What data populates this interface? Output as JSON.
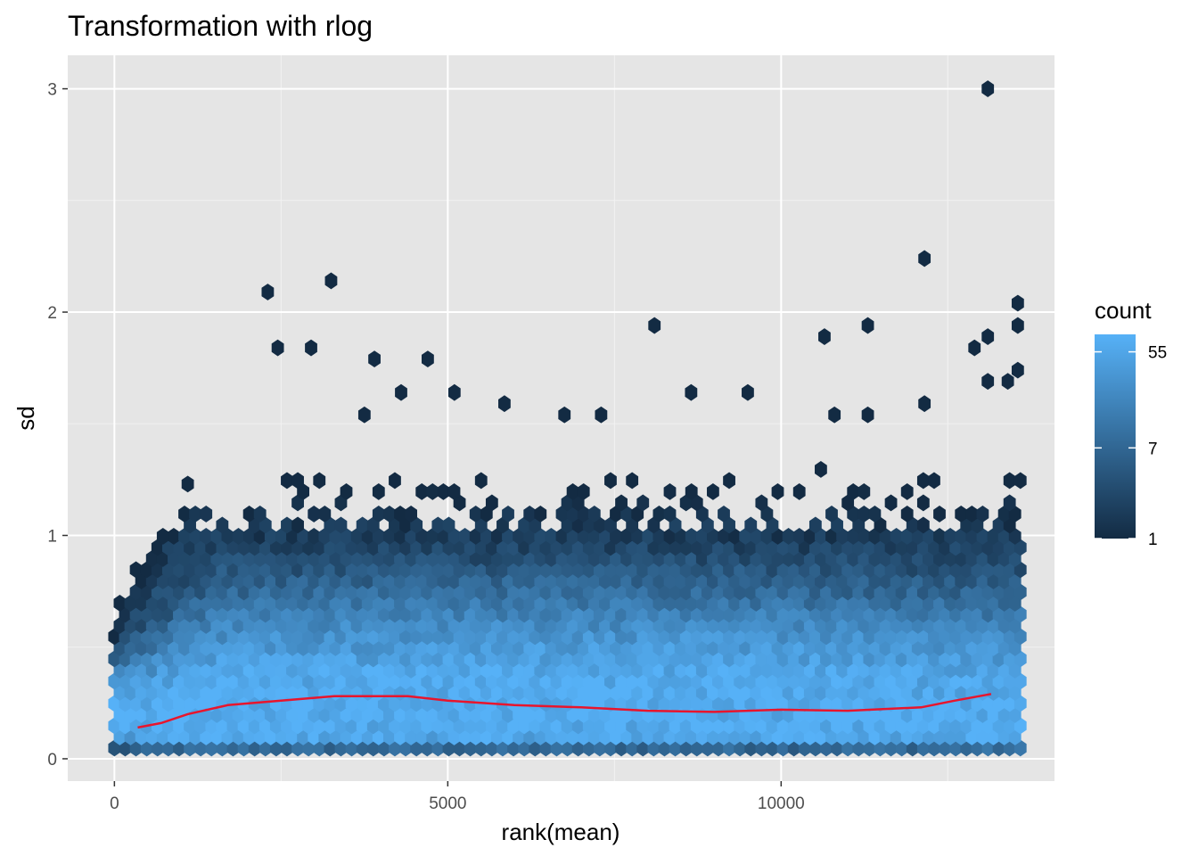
{
  "chart_data": {
    "type": "hexbin",
    "title": "Transformation with rlog",
    "xlabel": "rank(mean)",
    "ylabel": "sd",
    "xlim": [
      -700,
      14100
    ],
    "ylim": [
      -0.1,
      3.15
    ],
    "x_ticks": [
      0,
      5000,
      10000
    ],
    "x_tick_labels": [
      "0",
      "5000",
      "10000"
    ],
    "y_ticks": [
      0,
      1,
      2,
      3
    ],
    "y_tick_labels": [
      "0",
      "1",
      "2",
      "3"
    ],
    "grid": true,
    "panel_background": "#e5e5e5",
    "legend": {
      "title": "count",
      "position": "right",
      "scale": "log",
      "range": [
        1,
        80
      ],
      "breaks": [
        1,
        7,
        55
      ],
      "break_labels": [
        "1",
        "7",
        "55"
      ],
      "low_color": "#132b43",
      "high_color": "#56b1f7"
    },
    "outlier_hexes": [
      {
        "x": 13100,
        "y": 3.0
      },
      {
        "x": 12150,
        "y": 2.24
      },
      {
        "x": 3250,
        "y": 2.14
      },
      {
        "x": 2300,
        "y": 2.09
      },
      {
        "x": 13550,
        "y": 2.04
      },
      {
        "x": 11300,
        "y": 1.94
      },
      {
        "x": 8100,
        "y": 1.94
      },
      {
        "x": 13550,
        "y": 1.94
      },
      {
        "x": 10650,
        "y": 1.89
      },
      {
        "x": 13100,
        "y": 1.89
      },
      {
        "x": 2450,
        "y": 1.84
      },
      {
        "x": 2950,
        "y": 1.84
      },
      {
        "x": 12900,
        "y": 1.84
      },
      {
        "x": 3900,
        "y": 1.79
      },
      {
        "x": 4700,
        "y": 1.79
      },
      {
        "x": 13550,
        "y": 1.74
      },
      {
        "x": 13100,
        "y": 1.69
      },
      {
        "x": 13400,
        "y": 1.69
      },
      {
        "x": 4300,
        "y": 1.64
      },
      {
        "x": 5100,
        "y": 1.64
      },
      {
        "x": 8650,
        "y": 1.64
      },
      {
        "x": 9500,
        "y": 1.64
      },
      {
        "x": 5850,
        "y": 1.59
      },
      {
        "x": 12150,
        "y": 1.59
      },
      {
        "x": 3750,
        "y": 1.54
      },
      {
        "x": 6750,
        "y": 1.54
      },
      {
        "x": 7300,
        "y": 1.54
      },
      {
        "x": 10800,
        "y": 1.54
      },
      {
        "x": 11300,
        "y": 1.54
      },
      {
        "x": 1100,
        "y": 1.23
      }
    ],
    "mean_sd_by_rank": {
      "x": [
        350,
        700,
        1100,
        1700,
        2500,
        3300,
        4000,
        4400,
        5000,
        6000,
        7000,
        8000,
        9000,
        10000,
        11000,
        12100,
        12600,
        13150
      ],
      "y": [
        0.14,
        0.16,
        0.2,
        0.24,
        0.26,
        0.28,
        0.28,
        0.28,
        0.26,
        0.24,
        0.23,
        0.215,
        0.21,
        0.22,
        0.215,
        0.23,
        0.26,
        0.29
      ],
      "color": "#e8152d"
    }
  }
}
